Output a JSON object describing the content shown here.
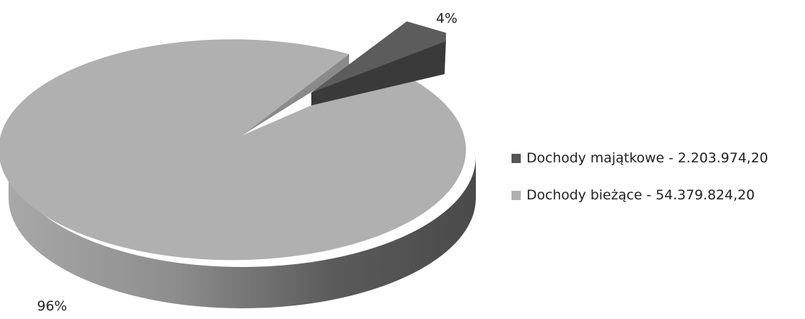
{
  "chart_data": {
    "type": "pie",
    "title": "",
    "style": "3d-exploded",
    "slices": [
      {
        "label": "Dochody majątkowe - 2.203.974,20",
        "value": 2203974.2,
        "percent_label": "4%",
        "color": "#555555"
      },
      {
        "label": "Dochody bieżące - 54.379.824,20",
        "value": 54379824.2,
        "percent_label": "96%",
        "color": "#b0b0b0"
      }
    ],
    "legend_position": "right"
  }
}
